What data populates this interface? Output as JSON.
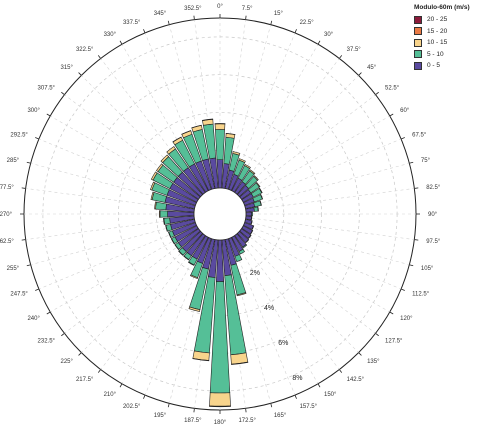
{
  "chart_data": {
    "type": "windrose",
    "legend_title": "Modulo-60m (m/s)",
    "directions": [
      "0°",
      "7.5°",
      "15°",
      "22.5°",
      "30°",
      "37.5°",
      "45°",
      "52.5°",
      "60°",
      "67.5°",
      "75°",
      "82.5°",
      "90°",
      "97.5°",
      "105°",
      "112.5°",
      "120°",
      "127.5°",
      "135°",
      "142.5°",
      "150°",
      "157.5°",
      "165°",
      "172.5°",
      "180°",
      "187.5°",
      "195°",
      "202.5°",
      "210°",
      "217.5°",
      "225°",
      "232.5°",
      "240°",
      "247.5°",
      "255°",
      "262.5°",
      "270°",
      "277.5°",
      "285°",
      "292.5°",
      "300°",
      "307.5°",
      "315°",
      "322.5°",
      "330°",
      "337.5°",
      "345°",
      "352.5°"
    ],
    "radial_ticks": [
      {
        "value": 2,
        "label": "2%"
      },
      {
        "value": 4,
        "label": "4%"
      },
      {
        "value": 6,
        "label": "6%"
      },
      {
        "value": 8,
        "label": "8%"
      }
    ],
    "rmax": 9,
    "series": [
      {
        "name": "0 - 5",
        "color": "#5a4aa0",
        "values": [
          1.5,
          1.3,
          1.0,
          0.85,
          0.75,
          0.7,
          0.65,
          0.6,
          0.6,
          0.55,
          0.5,
          0.45,
          0.3,
          0.3,
          0.35,
          0.5,
          0.55,
          0.6,
          0.65,
          0.75,
          0.85,
          1.0,
          1.4,
          1.9,
          2.2,
          2.0,
          1.6,
          1.4,
          1.3,
          1.3,
          1.3,
          1.3,
          1.3,
          1.3,
          1.3,
          1.3,
          1.4,
          1.5,
          1.6,
          1.6,
          1.6,
          1.6,
          1.6,
          1.6,
          1.6,
          1.6,
          1.6,
          1.6
        ]
      },
      {
        "name": "5 - 10",
        "color": "#55bf97",
        "values": [
          1.6,
          1.4,
          0.9,
          0.8,
          0.75,
          0.7,
          0.65,
          0.55,
          0.5,
          0.45,
          0.35,
          0.2,
          0.05,
          0.02,
          0.02,
          0.02,
          0.02,
          0.02,
          0.02,
          0.05,
          0.15,
          0.3,
          1.6,
          4.2,
          5.9,
          4.0,
          2.2,
          0.8,
          0.35,
          0.25,
          0.25,
          0.2,
          0.2,
          0.2,
          0.25,
          0.3,
          0.4,
          0.55,
          0.7,
          0.85,
          1.0,
          1.0,
          1.1,
          1.2,
          1.4,
          1.5,
          1.6,
          1.8
        ]
      },
      {
        "name": "10 - 15",
        "color": "#f8d48c",
        "values": [
          0.3,
          0.2,
          0.1,
          0.08,
          0.07,
          0.06,
          0.05,
          0.04,
          0.03,
          0.02,
          0.02,
          0.02,
          0,
          0,
          0,
          0,
          0,
          0,
          0,
          0,
          0,
          0,
          0.05,
          0.5,
          0.7,
          0.4,
          0.1,
          0.05,
          0.03,
          0.02,
          0.02,
          0.02,
          0.02,
          0.02,
          0.02,
          0.03,
          0.04,
          0.05,
          0.06,
          0.08,
          0.1,
          0.1,
          0.12,
          0.15,
          0.18,
          0.2,
          0.22,
          0.25
        ]
      },
      {
        "name": "15 - 20",
        "color": "#ea7a45",
        "values": [
          0.02,
          0.01,
          0,
          0,
          0,
          0,
          0,
          0,
          0,
          0,
          0,
          0,
          0,
          0,
          0,
          0,
          0,
          0,
          0,
          0,
          0,
          0,
          0,
          0.02,
          0.03,
          0.02,
          0,
          0,
          0,
          0,
          0,
          0,
          0,
          0,
          0,
          0,
          0,
          0,
          0,
          0,
          0,
          0,
          0,
          0,
          0.01,
          0.01,
          0.01,
          0.02
        ]
      },
      {
        "name": "20 - 25",
        "color": "#8b1a3a",
        "values": [
          0,
          0,
          0,
          0,
          0,
          0,
          0,
          0,
          0,
          0,
          0,
          0,
          0,
          0,
          0,
          0,
          0,
          0,
          0,
          0,
          0,
          0,
          0,
          0,
          0,
          0,
          0,
          0,
          0,
          0,
          0,
          0,
          0,
          0,
          0,
          0,
          0,
          0,
          0,
          0,
          0,
          0,
          0,
          0,
          0,
          0,
          0,
          0
        ]
      }
    ],
    "legend_order": [
      "20 - 25",
      "15 - 20",
      "10 - 15",
      "5 - 10",
      "0 - 5"
    ],
    "grid": true
  }
}
